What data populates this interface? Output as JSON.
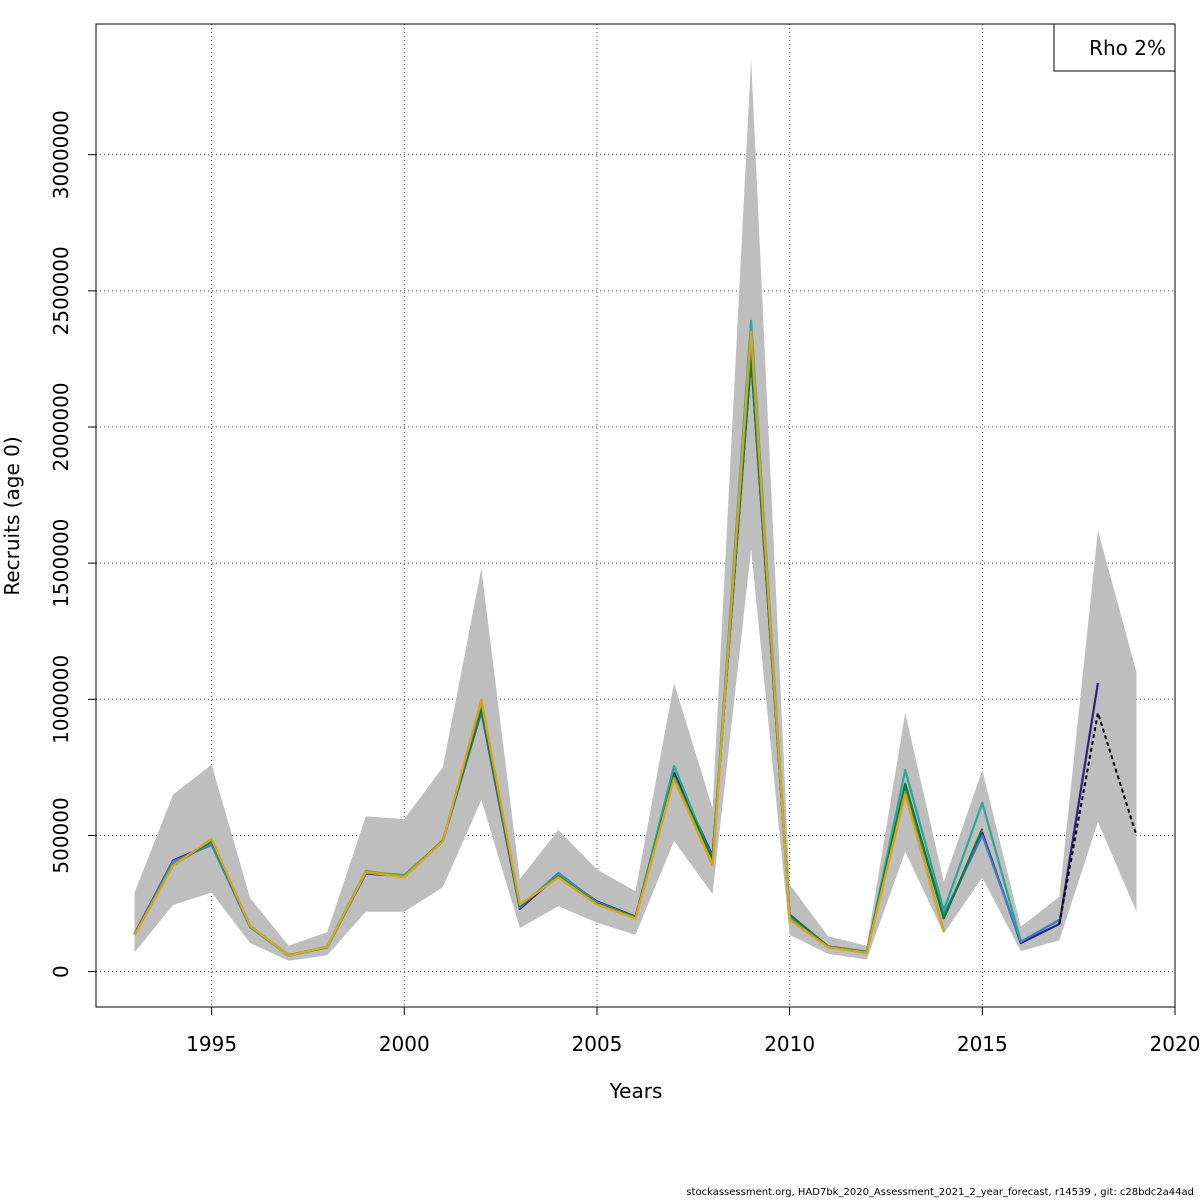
{
  "chart_data": {
    "type": "line",
    "xlabel": "Years",
    "ylabel": "Recruits (age 0)",
    "xlim": [
      1992,
      2020
    ],
    "ylim": [
      -130000,
      3480000
    ],
    "x_ticks": [
      1995,
      2000,
      2005,
      2010,
      2015,
      2020
    ],
    "y_ticks": [
      0,
      500000,
      1000000,
      1500000,
      2000000,
      2500000,
      3000000
    ],
    "grid": true,
    "legend": {
      "text": "Rho 2%",
      "placement": "top-right"
    },
    "confidence_band": {
      "color": "#bebebe",
      "x": [
        1993,
        1994,
        1995,
        1996,
        1997,
        1998,
        1999,
        2000,
        2001,
        2002,
        2003,
        2004,
        2005,
        2006,
        2007,
        2008,
        2009,
        2010,
        2011,
        2012,
        2013,
        2014,
        2015,
        2016,
        2017,
        2018,
        2019
      ],
      "lower": [
        70000,
        245000,
        290000,
        105000,
        40000,
        60000,
        220000,
        220000,
        310000,
        630000,
        160000,
        240000,
        180000,
        135000,
        480000,
        285000,
        1550000,
        135000,
        65000,
        45000,
        440000,
        140000,
        345000,
        75000,
        115000,
        550000,
        220000
      ],
      "upper": [
        290000,
        650000,
        760000,
        270000,
        95000,
        145000,
        570000,
        560000,
        750000,
        1480000,
        340000,
        520000,
        375000,
        295000,
        1060000,
        600000,
        3350000,
        320000,
        130000,
        95000,
        950000,
        330000,
        740000,
        165000,
        275000,
        1620000,
        1100000
      ]
    },
    "series": [
      {
        "color": "#2b2182",
        "x": [
          1993,
          1994,
          1995,
          1996,
          1997,
          1998,
          1999,
          2000,
          2001,
          2002,
          2003,
          2004,
          2005,
          2006,
          2007,
          2008,
          2009,
          2010,
          2011,
          2012,
          2013,
          2014,
          2015,
          2016,
          2017,
          2018
        ],
        "values": [
          138000,
          408000,
          470000,
          165000,
          60000,
          90000,
          360000,
          350000,
          480000,
          955000,
          230000,
          355000,
          258000,
          202000,
          730000,
          425000,
          2250000,
          205000,
          92000,
          72000,
          680000,
          200000,
          510000,
          105000,
          175000,
          1060000
        ]
      },
      {
        "color": "#3a7fc4",
        "x": [
          1993,
          1994,
          1995,
          1996,
          1997,
          1998,
          1999,
          2000,
          2001,
          2002,
          2003,
          2004,
          2005,
          2006,
          2007,
          2008,
          2009,
          2010,
          2011,
          2012,
          2013,
          2014,
          2015,
          2016,
          2017
        ],
        "values": [
          136000,
          405000,
          465000,
          163000,
          59000,
          89000,
          362000,
          352000,
          478000,
          960000,
          235000,
          362000,
          255000,
          200000,
          715000,
          420000,
          2270000,
          200000,
          91000,
          70000,
          670000,
          210000,
          500000,
          110000,
          190000
        ]
      },
      {
        "color": "#2fa59a",
        "x": [
          1993,
          1994,
          1995,
          1996,
          1997,
          1998,
          1999,
          2000,
          2001,
          2002,
          2003,
          2004,
          2005,
          2006,
          2007,
          2008,
          2009,
          2010,
          2011,
          2012,
          2013,
          2014,
          2015,
          2016
        ],
        "values": [
          135000,
          395000,
          475000,
          165000,
          58000,
          90000,
          365000,
          355000,
          480000,
          975000,
          240000,
          355000,
          252000,
          198000,
          755000,
          410000,
          2390000,
          195000,
          90000,
          68000,
          740000,
          225000,
          620000,
          110000
        ]
      },
      {
        "color": "#0f7a3a",
        "x": [
          1993,
          1994,
          1995,
          1996,
          1997,
          1998,
          1999,
          2000,
          2001,
          2002,
          2003,
          2004,
          2005,
          2006,
          2007,
          2008,
          2009,
          2010,
          2011,
          2012,
          2013,
          2014,
          2015
        ],
        "values": [
          137000,
          390000,
          480000,
          166000,
          60000,
          91000,
          368000,
          348000,
          482000,
          965000,
          242000,
          350000,
          250000,
          200000,
          720000,
          415000,
          2260000,
          210000,
          92000,
          72000,
          690000,
          195000,
          525000
        ]
      },
      {
        "color": "#7fa82a",
        "x": [
          1993,
          1994,
          1995,
          1996,
          1997,
          1998,
          1999,
          2000,
          2001,
          2002,
          2003,
          2004,
          2005,
          2006,
          2007,
          2008,
          2009,
          2010,
          2011,
          2012,
          2013,
          2014
        ],
        "values": [
          135000,
          392000,
          485000,
          168000,
          60000,
          92000,
          370000,
          350000,
          480000,
          990000,
          245000,
          348000,
          248000,
          197000,
          712000,
          395000,
          2330000,
          195000,
          90000,
          70000,
          660000,
          150000
        ]
      },
      {
        "color": "#d9a520",
        "x": [
          1993,
          1994,
          1995,
          1996,
          1997,
          1998,
          1999,
          2000,
          2001,
          2002,
          2003,
          2004,
          2005,
          2006,
          2007,
          2008,
          2009,
          2010,
          2011,
          2012,
          2013,
          2014
        ],
        "values": [
          134000,
          388000,
          488000,
          167000,
          59000,
          91000,
          366000,
          346000,
          478000,
          1000000,
          247000,
          345000,
          246000,
          195000,
          705000,
          390000,
          2350000,
          190000,
          89000,
          69000,
          650000,
          145000
        ]
      },
      {
        "color": "#000000",
        "dashed": true,
        "x": [
          2017,
          2018,
          2019
        ],
        "values": [
          175000,
          950000,
          500000
        ]
      }
    ]
  },
  "footer": "stockassessment.org, HAD7bk_2020_Assessment_2021_2_year_forecast, r14539 , git: c28bdc2a44ad"
}
